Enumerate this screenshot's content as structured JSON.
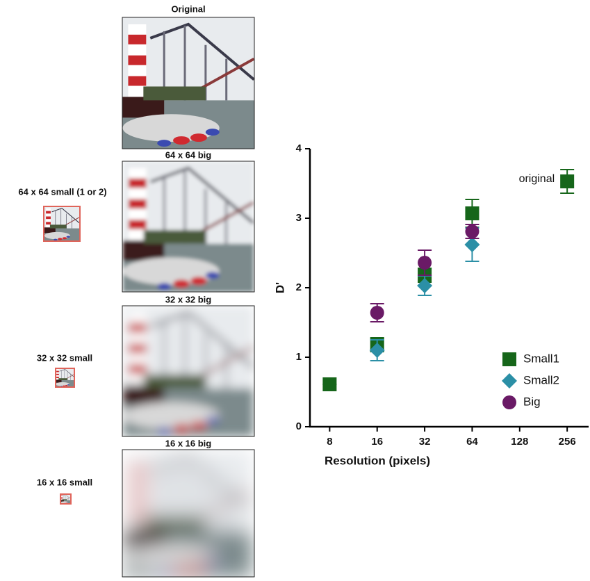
{
  "image_labels": {
    "original": "Original",
    "big64": "64 x 64 big",
    "small64": "64 x 64 small (1 or 2)",
    "big32": "32 x 32 big",
    "small32": "32 x 32 small",
    "big16": "16 x 16 big",
    "small16": "16 x 16 small"
  },
  "chart_data": {
    "type": "scatter",
    "xlabel": "Resolution (pixels)",
    "ylabel": "D'",
    "xscale": "log2",
    "xlim": [
      6,
      350
    ],
    "xticks": [
      8,
      16,
      32,
      64,
      128,
      256
    ],
    "ylim": [
      0,
      4
    ],
    "yticks": [
      0,
      1,
      2,
      3,
      4
    ],
    "grid": false,
    "legend": "lower right",
    "annotation": "original",
    "series": [
      {
        "name": "Small1",
        "color": "#16661a",
        "marker": "square",
        "x": [
          8,
          16,
          32,
          64,
          256
        ],
        "values": [
          0.61,
          1.18,
          2.18,
          3.07,
          3.53
        ],
        "errors": [
          0.0,
          0.1,
          0.1,
          0.2,
          0.17
        ]
      },
      {
        "name": "Small2",
        "color": "#2b8fa6",
        "marker": "diamond",
        "x": [
          16,
          32,
          64
        ],
        "values": [
          1.1,
          2.03,
          2.62
        ],
        "errors": [
          0.15,
          0.14,
          0.24
        ]
      },
      {
        "name": "Big",
        "color": "#6a1a66",
        "marker": "circle",
        "x": [
          16,
          32,
          64
        ],
        "values": [
          1.64,
          2.36,
          2.81
        ],
        "errors": [
          0.13,
          0.18,
          0.1
        ]
      }
    ]
  }
}
